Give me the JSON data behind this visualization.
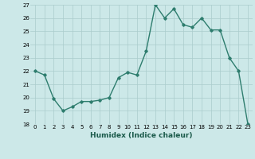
{
  "x": [
    0,
    1,
    2,
    3,
    4,
    5,
    6,
    7,
    8,
    9,
    10,
    11,
    12,
    13,
    14,
    15,
    16,
    17,
    18,
    19,
    20,
    21,
    22,
    23
  ],
  "y": [
    22,
    21.7,
    19.9,
    19.0,
    19.3,
    19.7,
    19.7,
    19.8,
    20.0,
    21.5,
    21.9,
    21.7,
    23.5,
    27.0,
    26.0,
    26.7,
    25.5,
    25.3,
    26.0,
    25.1,
    25.1,
    23.0,
    22.0,
    18.0
  ],
  "line_color": "#2e7d6e",
  "bg_color": "#cce8e8",
  "grid_color": "#aacccc",
  "xlabel": "Humidex (Indice chaleur)",
  "ylim": [
    18,
    27
  ],
  "yticks": [
    18,
    19,
    20,
    21,
    22,
    23,
    24,
    25,
    26,
    27
  ],
  "xticks": [
    0,
    1,
    2,
    3,
    4,
    5,
    6,
    7,
    8,
    9,
    10,
    11,
    12,
    13,
    14,
    15,
    16,
    17,
    18,
    19,
    20,
    21,
    22,
    23
  ],
  "marker": "D",
  "marker_size": 1.8,
  "linewidth": 1.0,
  "xlabel_fontsize": 6.5,
  "tick_fontsize": 5.0
}
